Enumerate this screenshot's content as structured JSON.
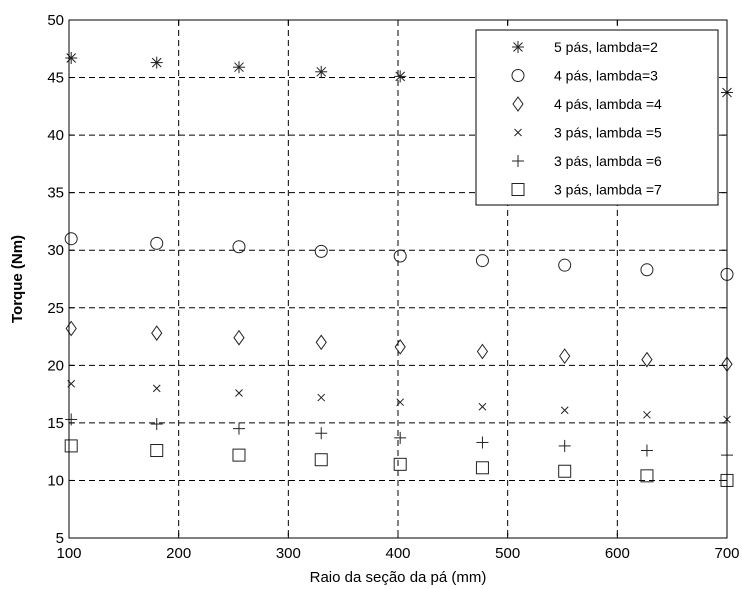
{
  "chart_data": {
    "type": "scatter",
    "title": "",
    "xlabel": "Raio da seção da pá (mm)",
    "ylabel": "Torque (Nm)",
    "xlim": [
      100,
      700
    ],
    "ylim": [
      5,
      50
    ],
    "xticks": [
      100,
      200,
      300,
      400,
      500,
      600,
      700
    ],
    "yticks": [
      5,
      10,
      15,
      20,
      25,
      30,
      35,
      40,
      45,
      50
    ],
    "grid": true,
    "grid_style": "dashed",
    "legend_position": "top-right",
    "x": [
      102,
      180,
      255,
      330,
      402,
      477,
      552,
      627,
      700
    ],
    "series": [
      {
        "name": "5 pás, lambda=2",
        "marker": "asterisk",
        "x": [
          102,
          180,
          255,
          330,
          402,
          700
        ],
        "values": [
          46.7,
          46.3,
          45.9,
          45.5,
          45.1,
          43.7
        ]
      },
      {
        "name": "4 pás, lambda=3",
        "marker": "circle",
        "values": [
          31.0,
          30.6,
          30.3,
          29.9,
          29.5,
          29.1,
          28.7,
          28.3,
          27.9
        ]
      },
      {
        "name": "4 pás, lambda =4",
        "marker": "diamond",
        "values": [
          23.2,
          22.8,
          22.4,
          22.0,
          21.6,
          21.2,
          20.8,
          20.5,
          20.1
        ]
      },
      {
        "name": "3 pás, lambda =5",
        "marker": "x",
        "values": [
          18.4,
          18.0,
          17.6,
          17.2,
          16.8,
          16.4,
          16.1,
          15.7,
          15.3
        ]
      },
      {
        "name": "3 pás, lambda =6",
        "marker": "plus",
        "values": [
          15.3,
          14.9,
          14.5,
          14.1,
          13.7,
          13.3,
          13.0,
          12.6,
          12.2
        ]
      },
      {
        "name": "3 pás, lambda =7",
        "marker": "square",
        "values": [
          13.0,
          12.6,
          12.2,
          11.8,
          11.4,
          11.1,
          10.8,
          10.4,
          10.0
        ]
      }
    ]
  }
}
